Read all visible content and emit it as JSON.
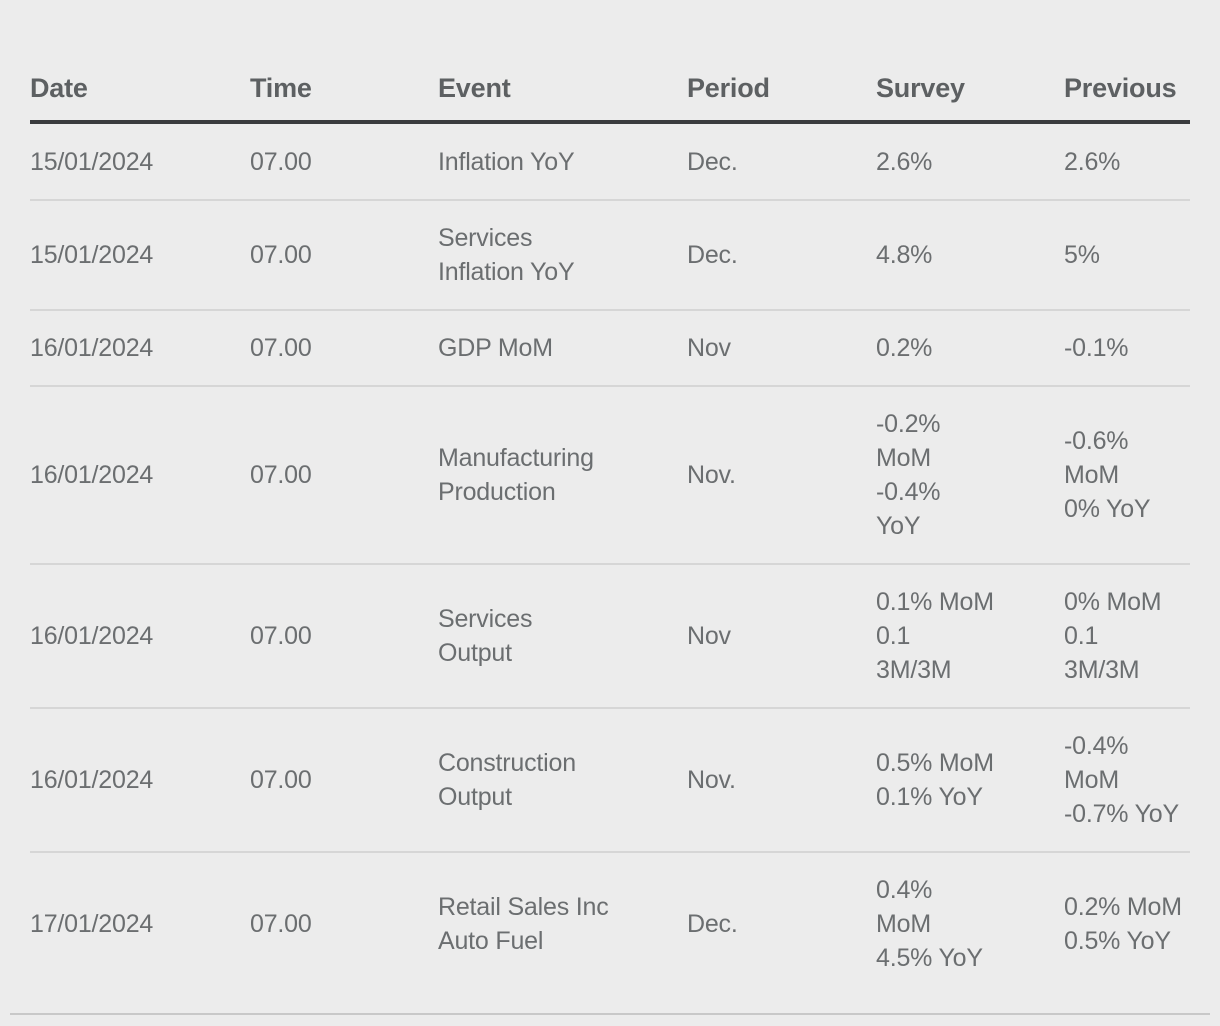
{
  "table": {
    "headers": {
      "date": "Date",
      "time": "Time",
      "event": "Event",
      "period": "Period",
      "survey": "Survey",
      "previous": "Previous"
    },
    "rows": [
      {
        "date": "15/01/2024",
        "time": "07.00",
        "event": "Inflation YoY",
        "period": "Dec.",
        "survey": "2.6%",
        "previous": "2.6%"
      },
      {
        "date": "15/01/2024",
        "time": "07.00",
        "event": "Services\nInflation YoY",
        "period": "Dec.",
        "survey": "4.8%",
        "previous": "5%"
      },
      {
        "date": "16/01/2024",
        "time": "07.00",
        "event": "GDP MoM",
        "period": "Nov",
        "survey": "0.2%",
        "previous": "-0.1%"
      },
      {
        "date": "16/01/2024",
        "time": "07.00",
        "event": "Manufacturing\nProduction",
        "period": "Nov.",
        "survey": "-0.2%\nMoM\n-0.4%\nYoY",
        "previous": "-0.6%\nMoM\n0% YoY"
      },
      {
        "date": "16/01/2024",
        "time": "07.00",
        "event": "Services\nOutput",
        "period": "Nov",
        "survey": "0.1% MoM\n0.1\n3M/3M",
        "previous": "0% MoM\n0.1\n3M/3M"
      },
      {
        "date": "16/01/2024",
        "time": "07.00",
        "event": "Construction\nOutput",
        "period": "Nov.",
        "survey": "0.5% MoM\n0.1% YoY",
        "previous": "-0.4%\nMoM\n-0.7% YoY"
      },
      {
        "date": "17/01/2024",
        "time": "07.00",
        "event": "Retail Sales Inc\nAuto Fuel",
        "period": "Dec.",
        "survey": "0.4%\nMoM\n4.5% YoY",
        "previous": "0.2% MoM\n0.5% YoY"
      }
    ]
  }
}
